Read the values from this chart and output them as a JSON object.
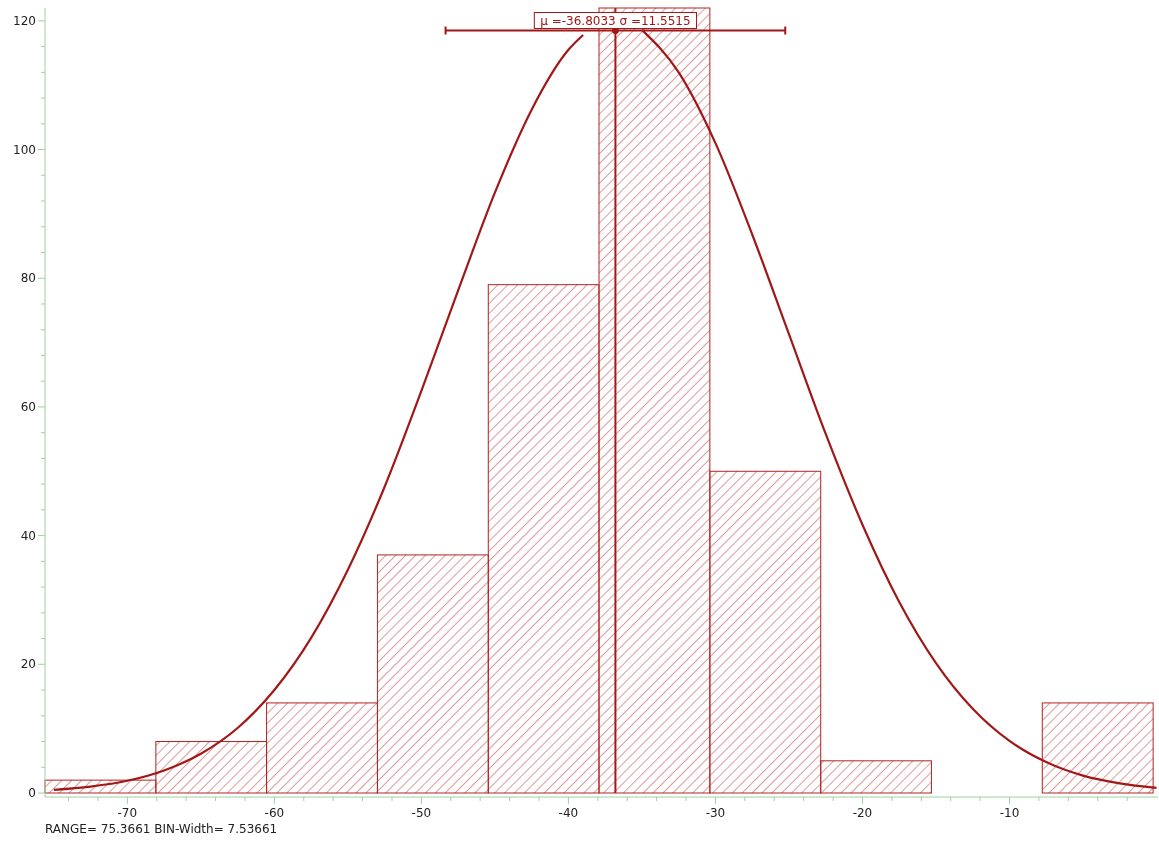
{
  "chart_data": {
    "type": "histogram",
    "xlim": [
      -75.6,
      0.1
    ],
    "ylim": [
      0,
      122
    ],
    "xticks": [
      {
        "value": -74,
        "label": null
      },
      {
        "value": -72,
        "label": null
      },
      -70,
      {
        "value": -68,
        "label": null
      },
      {
        "value": -66,
        "label": null
      },
      {
        "value": -64,
        "label": null
      },
      {
        "value": -62,
        "label": null
      },
      -60,
      {
        "value": -58,
        "label": null
      },
      {
        "value": -56,
        "label": null
      },
      {
        "value": -54,
        "label": null
      },
      {
        "value": -52,
        "label": null
      },
      -50,
      {
        "value": -48,
        "label": null
      },
      {
        "value": -46,
        "label": null
      },
      {
        "value": -44,
        "label": null
      },
      {
        "value": -42,
        "label": null
      },
      -40,
      {
        "value": -38,
        "label": null
      },
      {
        "value": -36,
        "label": null
      },
      {
        "value": -34,
        "label": null
      },
      {
        "value": -32,
        "label": null
      },
      -30,
      {
        "value": -28,
        "label": null
      },
      {
        "value": -26,
        "label": null
      },
      {
        "value": -24,
        "label": null
      },
      {
        "value": -22,
        "label": null
      },
      -20,
      {
        "value": -18,
        "label": null
      },
      {
        "value": -16,
        "label": null
      },
      {
        "value": -14,
        "label": null
      },
      {
        "value": -12,
        "label": null
      },
      -10,
      {
        "value": -8,
        "label": null
      },
      {
        "value": -6,
        "label": null
      },
      {
        "value": -4,
        "label": null
      },
      {
        "value": -2,
        "label": null
      }
    ],
    "yticks": [
      0,
      {
        "value": 4,
        "label": null
      },
      {
        "value": 8,
        "label": null
      },
      {
        "value": 12,
        "label": null
      },
      {
        "value": 16,
        "label": null
      },
      20,
      {
        "value": 24,
        "label": null
      },
      {
        "value": 28,
        "label": null
      },
      {
        "value": 32,
        "label": null
      },
      {
        "value": 36,
        "label": null
      },
      40,
      {
        "value": 44,
        "label": null
      },
      {
        "value": 48,
        "label": null
      },
      {
        "value": 52,
        "label": null
      },
      {
        "value": 56,
        "label": null
      },
      60,
      {
        "value": 64,
        "label": null
      },
      {
        "value": 68,
        "label": null
      },
      {
        "value": 72,
        "label": null
      },
      {
        "value": 76,
        "label": null
      },
      80,
      {
        "value": 84,
        "label": null
      },
      {
        "value": 88,
        "label": null
      },
      {
        "value": 92,
        "label": null
      },
      {
        "value": 96,
        "label": null
      },
      100,
      {
        "value": 104,
        "label": null
      },
      {
        "value": 108,
        "label": null
      },
      {
        "value": 112,
        "label": null
      },
      {
        "value": 116,
        "label": null
      },
      120
    ],
    "grid": false,
    "series": [
      {
        "color": "#b22222",
        "bins": [
          -75.6,
          -68.06,
          -60.53,
          -52.99,
          -45.45,
          -37.92,
          -30.38,
          -22.84,
          -15.31,
          -7.77,
          -0.23
        ],
        "values": [
          2,
          8,
          14,
          37,
          79,
          122,
          50,
          5,
          0,
          14
        ]
      },
      {
        "type": "line",
        "color": "#a01818",
        "x": [
          -75,
          -72.5,
          -70,
          -67.5,
          -65,
          -62.5,
          -60,
          -57.5,
          -55,
          -52.5,
          -50,
          -47.5,
          -45,
          -42.5,
          -40,
          -39,
          -38,
          -37.5,
          -36.8,
          -35,
          -32.5,
          -30,
          -27.5,
          -25,
          -22.5,
          -20,
          -17.5,
          -15,
          -12.5,
          -10,
          -7.5,
          -5,
          -2.5,
          0
        ],
        "values": [
          0.5,
          1,
          1.9,
          3.5,
          6.1,
          10.1,
          16,
          24.1,
          34.7,
          47.6,
          62.5,
          78.1,
          93.3,
          106.2,
          115.5,
          117.8,
          null,
          null,
          null,
          118.6,
          112,
          101,
          86.8,
          71.3,
          55.8,
          41.7,
          29.7,
          20.2,
          13.1,
          8.1,
          4.8,
          2.7,
          1.5,
          0.8
        ]
      },
      {
        "type": "scatter",
        "color": "#a01818",
        "marker": "circle",
        "x": [
          -36.8033
        ],
        "values": [
          118.5
        ],
        "xerrors": [
          11.5515
        ]
      }
    ],
    "ref_lines": [
      {
        "axis": "x",
        "value": -36.8033,
        "color": "#a01818"
      }
    ],
    "annotations": [
      {
        "text": "μ =-36.8033 σ =11.5515",
        "x": -36.8033,
        "y": 118.5
      },
      "RANGE=  75.3661  BIN-Width=   7.53661"
    ]
  }
}
